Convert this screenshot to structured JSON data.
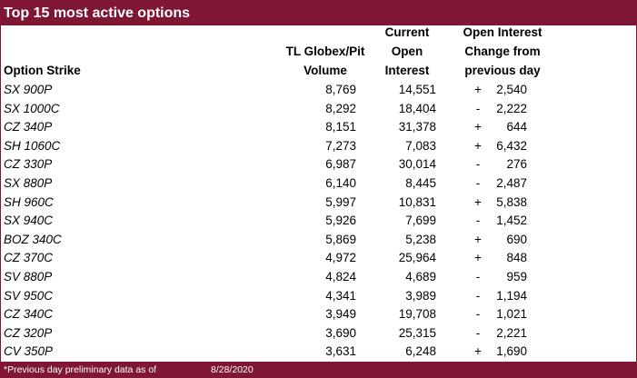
{
  "title": "Top 15 most active options",
  "headers": {
    "strike": "Option Strike",
    "volume": [
      "TL Globex/Pit",
      "Volume"
    ],
    "open_interest": [
      "Current",
      "Open",
      "Interest"
    ],
    "change": [
      "Open Interest",
      "Change from",
      "previous day"
    ]
  },
  "rows": [
    {
      "strike": "SX 900P",
      "volume": "8,769",
      "oi": "14,551",
      "sign": "+",
      "change": "2,540"
    },
    {
      "strike": "SX 1000C",
      "volume": "8,292",
      "oi": "18,404",
      "sign": "-",
      "change": "2,222"
    },
    {
      "strike": "CZ 340P",
      "volume": "8,151",
      "oi": "31,378",
      "sign": "+",
      "change": "644"
    },
    {
      "strike": "SH 1060C",
      "volume": "7,273",
      "oi": "7,083",
      "sign": "+",
      "change": "6,432"
    },
    {
      "strike": "CZ 330P",
      "volume": "6,987",
      "oi": "30,014",
      "sign": "-",
      "change": "276"
    },
    {
      "strike": "SX 880P",
      "volume": "6,140",
      "oi": "8,445",
      "sign": "-",
      "change": "2,487"
    },
    {
      "strike": "SH 960C",
      "volume": "5,997",
      "oi": "10,831",
      "sign": "+",
      "change": "5,838"
    },
    {
      "strike": "SX 940C",
      "volume": "5,926",
      "oi": "7,699",
      "sign": "-",
      "change": "1,452"
    },
    {
      "strike": "BOZ 340C",
      "volume": "5,869",
      "oi": "5,238",
      "sign": "+",
      "change": "690"
    },
    {
      "strike": "CZ 370C",
      "volume": "4,972",
      "oi": "25,964",
      "sign": "+",
      "change": "848"
    },
    {
      "strike": "SV 880P",
      "volume": "4,824",
      "oi": "4,689",
      "sign": "-",
      "change": "959"
    },
    {
      "strike": "SV 950C",
      "volume": "4,341",
      "oi": "3,989",
      "sign": "-",
      "change": "1,194"
    },
    {
      "strike": "CZ 340C",
      "volume": "3,949",
      "oi": "19,708",
      "sign": "-",
      "change": "1,021"
    },
    {
      "strike": "CZ 320P",
      "volume": "3,690",
      "oi": "25,315",
      "sign": "-",
      "change": "2,221"
    },
    {
      "strike": "CV 350P",
      "volume": "3,631",
      "oi": "6,248",
      "sign": "+",
      "change": "1,690"
    }
  ],
  "footer": {
    "note": "*Previous day preliminary data as of",
    "date": "8/28/2020"
  },
  "colors": {
    "accent": "#7f1734"
  }
}
